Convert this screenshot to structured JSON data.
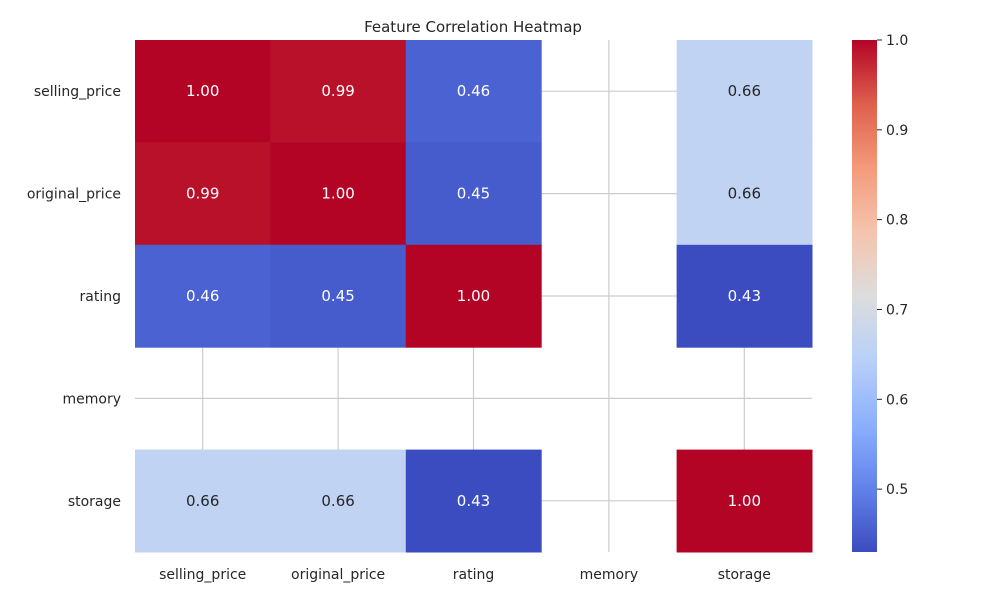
{
  "chart_data": {
    "type": "heatmap",
    "title": "Feature Correlation Heatmap",
    "rows": [
      "selling_price",
      "original_price",
      "rating",
      "memory",
      "storage"
    ],
    "columns": [
      "selling_price",
      "original_price",
      "rating",
      "memory",
      "storage"
    ],
    "values": [
      [
        1.0,
        0.99,
        0.46,
        null,
        0.66
      ],
      [
        0.99,
        1.0,
        0.45,
        null,
        0.66
      ],
      [
        0.46,
        0.45,
        1.0,
        null,
        0.43
      ],
      [
        null,
        null,
        null,
        null,
        null
      ],
      [
        0.66,
        0.66,
        0.43,
        null,
        1.0
      ]
    ],
    "annotation_format": "0.00",
    "colormap": "coolwarm",
    "color_range": [
      0.43,
      1.0
    ],
    "colorbar_ticks": [
      "1.0",
      "0.9",
      "0.8",
      "0.7",
      "0.6",
      "0.5"
    ],
    "missing_cells": "blank",
    "grid": true
  }
}
